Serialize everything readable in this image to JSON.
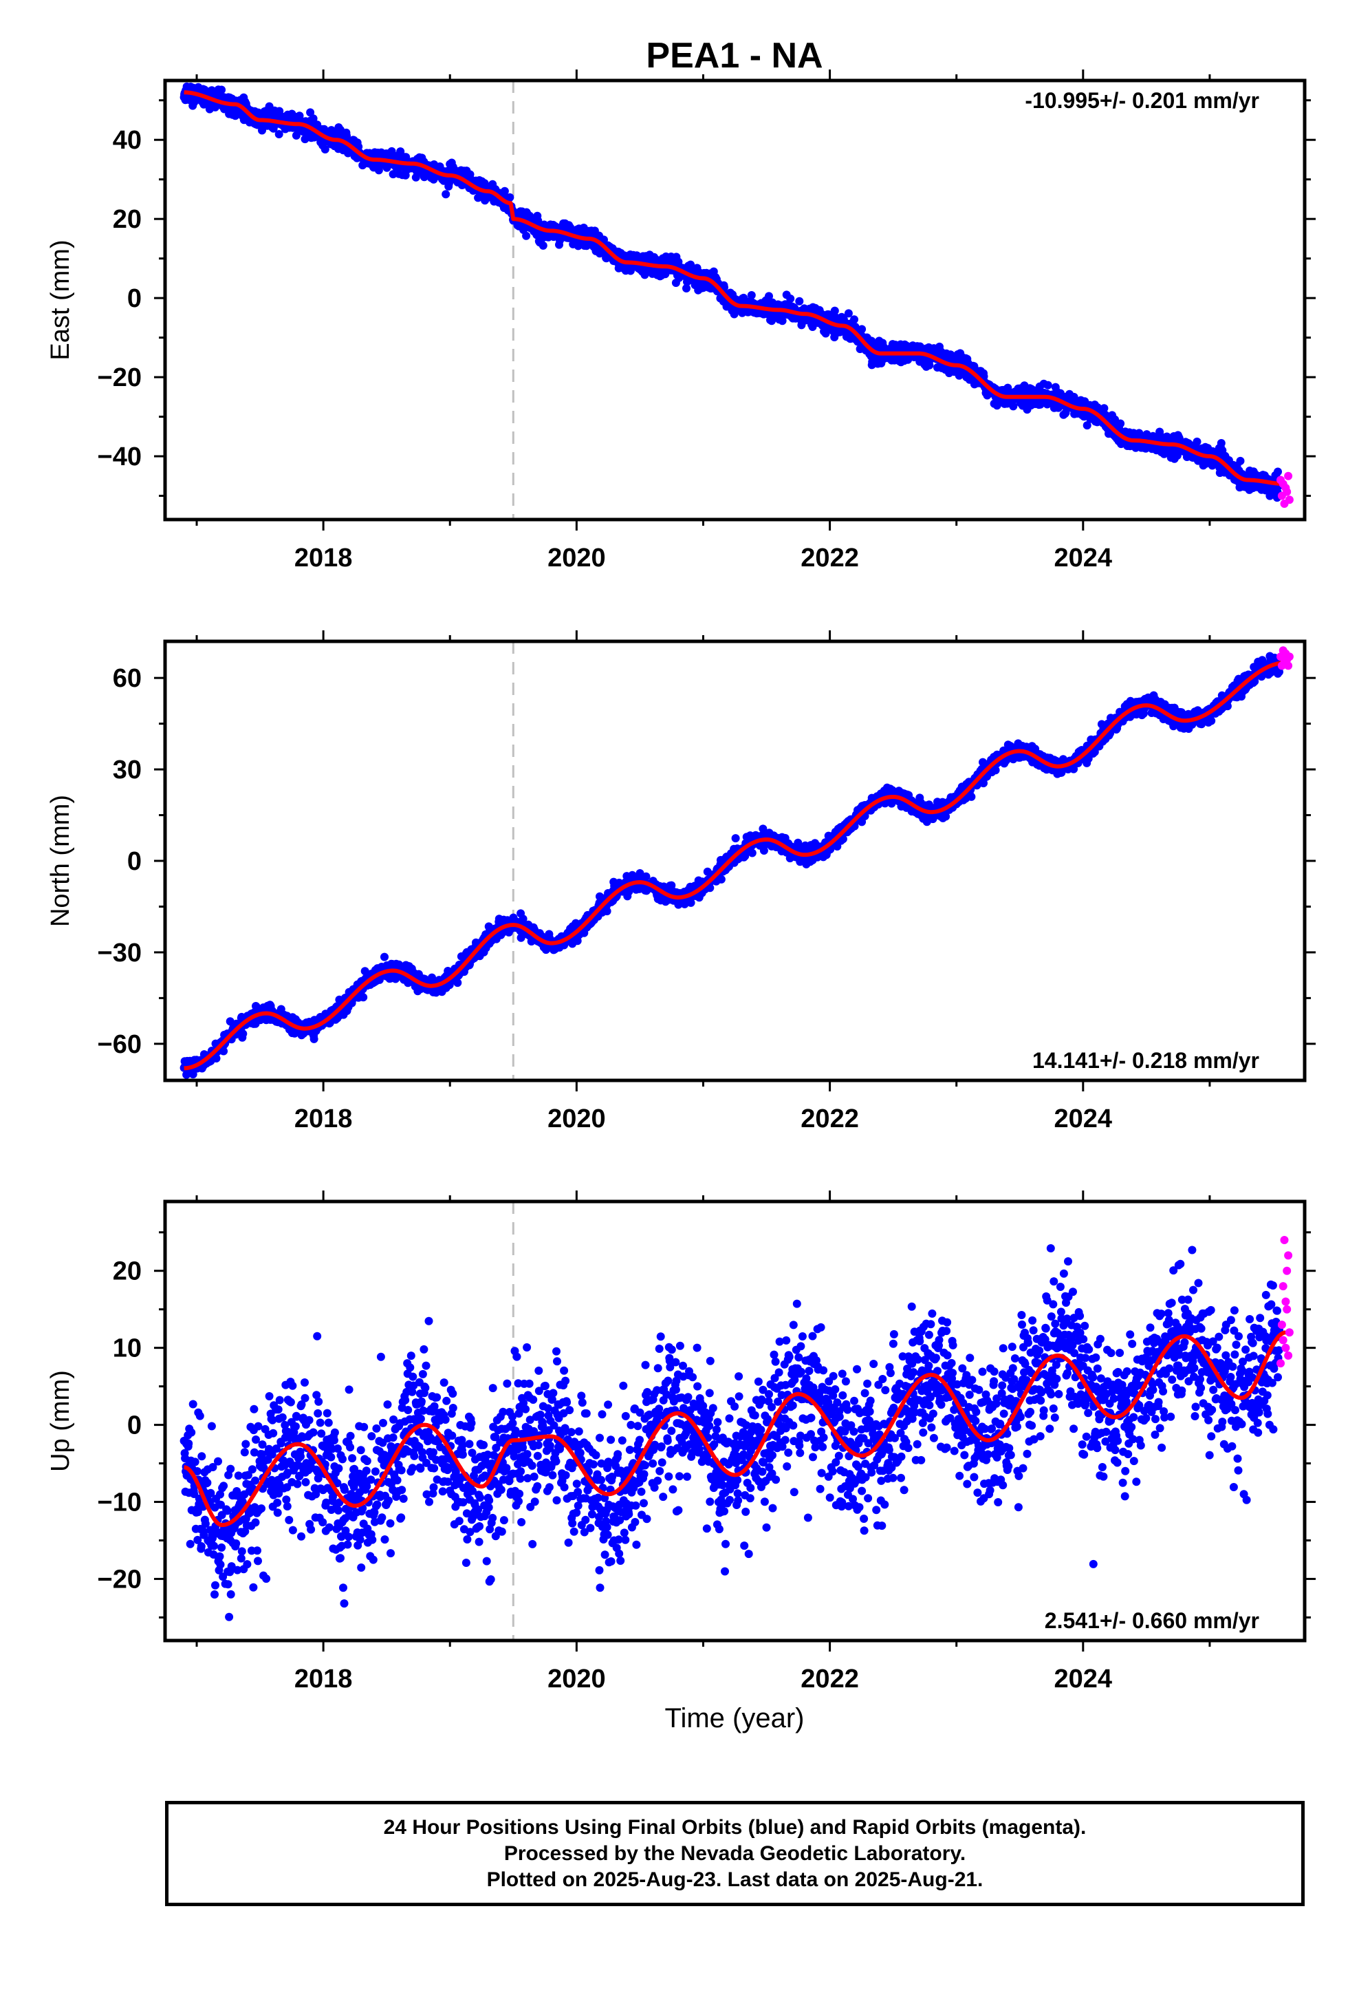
{
  "chart_data": {
    "type": "scatter",
    "title": "PEA1 - NA",
    "xlabel": "Time (year)",
    "xlim": [
      2016.75,
      2025.75
    ],
    "x_ticks": [
      2018,
      2020,
      2022,
      2024
    ],
    "event_line_x": 2019.5,
    "colors": {
      "final": "#0000ff",
      "rapid": "#ff00ff",
      "model": "#ff0000",
      "event": "#c0c0c0"
    },
    "panels": [
      {
        "name": "east",
        "ylabel": "East (mm)",
        "ylim": [
          -56,
          55
        ],
        "y_ticks": [
          40,
          20,
          0,
          -20,
          -40
        ],
        "velocity_text": "-10.995+/- 0.201 mm/yr",
        "velocity_pos": "top-right",
        "trend": {
          "x": [
            2016.9,
            2017.3,
            2017.5,
            2017.8,
            2018.1,
            2018.4,
            2018.7,
            2019.0,
            2019.3,
            2019.48,
            2019.5,
            2019.8,
            2020.1,
            2020.4,
            2020.7,
            2021.0,
            2021.3,
            2021.6,
            2021.8,
            2022.1,
            2022.4,
            2022.7,
            2023.0,
            2023.4,
            2023.7,
            2024.0,
            2024.4,
            2024.7,
            2025.0,
            2025.3,
            2025.6
          ],
          "y": [
            52,
            49,
            45,
            44,
            40,
            35,
            34,
            31,
            27,
            24,
            20,
            17,
            15,
            9,
            8,
            5,
            -2,
            -3,
            -4,
            -7,
            -14,
            -14,
            -17,
            -25,
            -25,
            -28,
            -36,
            -37,
            -40,
            -46,
            -47
          ]
        },
        "rapid_points": {
          "x": [
            2025.56,
            2025.57,
            2025.58,
            2025.59,
            2025.6,
            2025.61,
            2025.62,
            2025.63
          ],
          "y": [
            -46,
            -50,
            -47,
            -52,
            -48,
            -49,
            -45,
            -51
          ]
        },
        "scatter_sd": 1.2
      },
      {
        "name": "north",
        "ylabel": "North (mm)",
        "ylim": [
          -72,
          72
        ],
        "y_ticks": [
          60,
          30,
          0,
          -30,
          -60
        ],
        "velocity_text": "14.141+/- 0.218 mm/yr",
        "velocity_pos": "bottom-right",
        "trend": {
          "x": [
            2016.9,
            2017.55,
            2017.85,
            2018.55,
            2018.85,
            2019.5,
            2019.8,
            2020.5,
            2020.8,
            2021.5,
            2021.8,
            2022.5,
            2022.8,
            2023.5,
            2023.8,
            2024.5,
            2024.8,
            2025.6
          ],
          "y": [
            -68,
            -50,
            -55,
            -36,
            -41,
            -21,
            -27,
            -7,
            -12,
            7,
            2,
            21,
            16,
            36,
            31,
            51,
            46,
            65
          ]
        },
        "rapid_points": {
          "x": [
            2025.56,
            2025.57,
            2025.58,
            2025.59,
            2025.6,
            2025.61,
            2025.62,
            2025.63
          ],
          "y": [
            67,
            64,
            69,
            65,
            68,
            66,
            64,
            67
          ]
        },
        "scatter_sd": 1.3
      },
      {
        "name": "up",
        "ylabel": "Up (mm)",
        "ylim": [
          -28,
          29
        ],
        "y_ticks": [
          20,
          10,
          0,
          -10,
          -20
        ],
        "velocity_text": "2.541+/- 0.660 mm/yr",
        "velocity_pos": "bottom-right",
        "trend": {
          "x": [
            2016.9,
            2017.2,
            2017.8,
            2018.25,
            2018.8,
            2019.25,
            2019.5,
            2019.8,
            2020.25,
            2020.8,
            2021.25,
            2021.75,
            2022.25,
            2022.8,
            2023.25,
            2023.8,
            2024.25,
            2024.8,
            2025.25,
            2025.6
          ],
          "y": [
            -5.5,
            -13,
            -2.5,
            -10.5,
            0,
            -8,
            -2,
            -1.5,
            -9,
            1.5,
            -6.5,
            4,
            -4,
            6.5,
            -2,
            9,
            1,
            11.5,
            3.5,
            12
          ]
        },
        "rapid_points": {
          "x": [
            2025.56,
            2025.57,
            2025.58,
            2025.59,
            2025.6,
            2025.61,
            2025.62,
            2025.63,
            2025.58,
            2025.6,
            2025.61,
            2025.62
          ],
          "y": [
            8,
            13,
            18,
            24,
            10,
            15,
            22,
            12,
            11,
            16,
            20,
            9
          ]
        },
        "scatter_sd": 4.5
      }
    ]
  },
  "caption": {
    "line1": "24 Hour Positions Using Final Orbits (blue) and Rapid Orbits (magenta).",
    "line2": "Processed by the Nevada Geodetic Laboratory.",
    "line3": "Plotted on 2025-Aug-23. Last data on 2025-Aug-21."
  }
}
